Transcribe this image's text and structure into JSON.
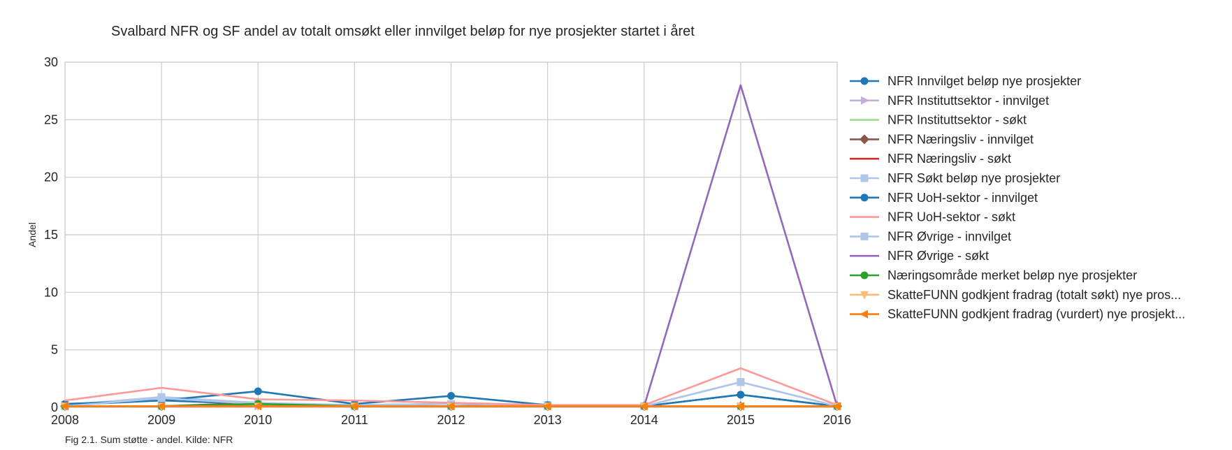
{
  "chart_data": {
    "type": "line",
    "title": "Svalbard NFR og SF andel av totalt omsøkt eller innvilget beløp for nye prosjekter startet i året",
    "xlabel": "",
    "ylabel": "Andel",
    "x": [
      2008,
      2009,
      2010,
      2011,
      2012,
      2013,
      2014,
      2015,
      2016
    ],
    "xlim": [
      2008,
      2016
    ],
    "ylim": [
      0,
      30
    ],
    "yticks": [
      0,
      5,
      10,
      15,
      20,
      25,
      30
    ],
    "grid": true,
    "legend_position": "right",
    "caption": "Fig 2.1. Sum støtte - andel. Kilde: NFR",
    "series": [
      {
        "name": "NFR Innvilget beløp nye prosjekter",
        "color": "#1f77b4",
        "marker": "circle",
        "values": [
          0.2,
          0.6,
          0.3,
          0.2,
          0.3,
          0.1,
          0.1,
          1.1,
          0.1
        ]
      },
      {
        "name": "NFR Instituttsektor - innvilget",
        "color": "#c5b0d5",
        "marker": "triangle-right",
        "values": [
          0.1,
          0.1,
          0.1,
          0.1,
          0.1,
          0.1,
          0.1,
          0.1,
          0.1
        ]
      },
      {
        "name": "NFR Instituttsektor - søkt",
        "color": "#98df8a",
        "marker": "none",
        "values": [
          0.1,
          0.1,
          0.2,
          0.1,
          0.1,
          0.1,
          0.1,
          0.1,
          0.1
        ]
      },
      {
        "name": "NFR Næringsliv - innvilget",
        "color": "#8c564b",
        "marker": "diamond",
        "values": [
          0.1,
          0.1,
          0.4,
          0.1,
          0.1,
          0.1,
          0.1,
          0.1,
          0.1
        ]
      },
      {
        "name": "NFR Næringsliv - søkt",
        "color": "#d62728",
        "marker": "none",
        "values": [
          0.1,
          0.1,
          0.1,
          0.1,
          0.1,
          0.1,
          0.1,
          0.1,
          0.1
        ]
      },
      {
        "name": "NFR Søkt beløp nye prosjekter",
        "color": "#aec7e8",
        "marker": "square",
        "values": [
          0.2,
          0.9,
          0.4,
          0.2,
          0.3,
          0.2,
          0.1,
          2.2,
          0.1
        ]
      },
      {
        "name": "NFR UoH-sektor - innvilget",
        "color": "#1f77b4",
        "marker": "circle",
        "values": [
          0.3,
          0.6,
          1.4,
          0.3,
          1.0,
          0.2,
          0.1,
          1.1,
          0.1
        ]
      },
      {
        "name": "NFR UoH-sektor - søkt",
        "color": "#ff9896",
        "marker": "none",
        "values": [
          0.6,
          1.7,
          0.7,
          0.6,
          0.4,
          0.2,
          0.2,
          3.4,
          0.2
        ]
      },
      {
        "name": "NFR Øvrige - innvilget",
        "color": "#aec7e8",
        "marker": "square",
        "values": [
          0.1,
          0.8,
          0.3,
          0.1,
          0.1,
          0.1,
          0.1,
          2.2,
          0.1
        ]
      },
      {
        "name": "NFR Øvrige - søkt",
        "color": "#9467bd",
        "marker": "none",
        "values": [
          0.1,
          0.1,
          0.1,
          0.1,
          0.1,
          0.1,
          0.1,
          28.0,
          0.1
        ]
      },
      {
        "name": "Næringsområde merket beløp nye prosjekter",
        "color": "#2ca02c",
        "marker": "circle",
        "values": [
          0.1,
          0.1,
          0.3,
          0.1,
          0.1,
          0.1,
          0.1,
          0.1,
          0.1
        ]
      },
      {
        "name": "SkatteFUNN godkjent fradrag (totalt søkt) nye pros...",
        "color": "#ffbb78",
        "marker": "triangle-down",
        "values": [
          0.1,
          0.1,
          0.1,
          0.1,
          0.1,
          0.1,
          0.1,
          0.1,
          0.1
        ]
      },
      {
        "name": "SkatteFUNN godkjent fradrag (vurdert) nye prosjekt...",
        "color": "#ff7f0e",
        "marker": "triangle-left",
        "values": [
          0.1,
          0.1,
          0.1,
          0.1,
          0.1,
          0.1,
          0.1,
          0.1,
          0.1
        ]
      }
    ]
  }
}
